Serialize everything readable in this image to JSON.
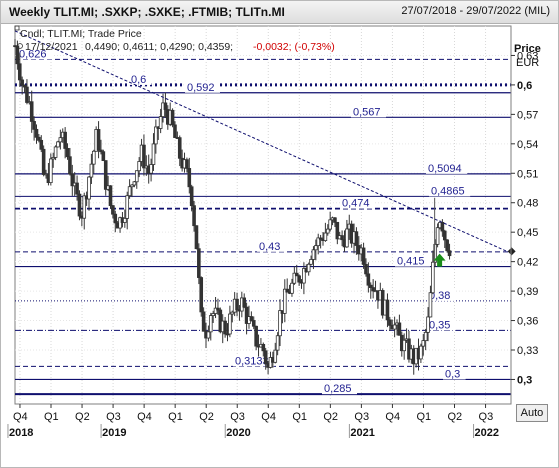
{
  "window": {
    "title": "Weekly TLIT.MI; .SXKP; .SXKE; .FTMIB; TLITn.MI",
    "date_range": "27/07/2018 - 29/07/2022 (MIL)"
  },
  "legend": {
    "line1": "Cndl; TLIT.MI; Trade Price",
    "date": "17/12/2021",
    "ohlc": "0,4490; 0,4611; 0,4290; 0,4359;",
    "change": "-0,0032; (-0,73%)"
  },
  "axis": {
    "price_label": "Price",
    "currency_label": "EUR",
    "auto_label": "Auto"
  },
  "colors": {
    "level_lines": "#0f0f6e",
    "candles": "#333333",
    "arrow": "#1a8c1a",
    "negative_change": "#d00000"
  },
  "chart_data": {
    "type": "candlestick",
    "title": "",
    "xlabel": "",
    "ylabel": "Price",
    "unit": "EUR",
    "ylim": [
      0.275,
      0.66
    ],
    "x_range": [
      "2018-07-27",
      "2022-07-29"
    ],
    "y_ticks": [
      "0,3",
      "0,33",
      "0,36",
      "0,39",
      "0,42",
      "0,45",
      "0,48",
      "0,51",
      "0,54",
      "0,57",
      "0,6",
      "0,63"
    ],
    "bold_y_ticks": [
      "0,3",
      "0,6"
    ],
    "x_quarter_ticks": [
      {
        "t": 2018.62,
        "label": "Q4"
      },
      {
        "t": 2018.87,
        "label": "Q1"
      },
      {
        "t": 2019.12,
        "label": "Q2"
      },
      {
        "t": 2019.37,
        "label": "Q3"
      },
      {
        "t": 2019.62,
        "label": "Q4"
      },
      {
        "t": 2019.87,
        "label": "Q1"
      },
      {
        "t": 2020.12,
        "label": "Q2"
      },
      {
        "t": 2020.37,
        "label": "Q3"
      },
      {
        "t": 2020.62,
        "label": "Q4"
      },
      {
        "t": 2020.87,
        "label": "Q1"
      },
      {
        "t": 2021.12,
        "label": "Q2"
      },
      {
        "t": 2021.37,
        "label": "Q3"
      },
      {
        "t": 2021.62,
        "label": "Q4"
      },
      {
        "t": 2021.87,
        "label": "Q1"
      },
      {
        "t": 2022.12,
        "label": "Q2"
      },
      {
        "t": 2022.37,
        "label": "Q3"
      }
    ],
    "x_year_labels": [
      {
        "t": 2018.62,
        "label": "2018"
      },
      {
        "t": 2019.37,
        "label": "2019"
      },
      {
        "t": 2020.37,
        "label": "2020"
      },
      {
        "t": 2021.37,
        "label": "2021"
      },
      {
        "t": 2022.37,
        "label": "2022"
      }
    ],
    "horizontal_levels": [
      {
        "label": "0,626",
        "value": 0.626,
        "style": "dashed"
      },
      {
        "label": "0,6",
        "value": 0.6,
        "style": "dotted-heavy"
      },
      {
        "label": "0,592",
        "value": 0.592,
        "style": "solid"
      },
      {
        "label": "0,567",
        "value": 0.567,
        "style": "solid"
      },
      {
        "label": "0,5094",
        "value": 0.5094,
        "style": "solid"
      },
      {
        "label": "0,4865",
        "value": 0.4865,
        "style": "solid-thin"
      },
      {
        "label": "0,474",
        "value": 0.474,
        "style": "dashed-heavy"
      },
      {
        "label": "0,43",
        "value": 0.43,
        "style": "dashed"
      },
      {
        "label": "0,415",
        "value": 0.415,
        "style": "solid"
      },
      {
        "label": "0,38",
        "value": 0.38,
        "style": "dotted"
      },
      {
        "label": "0,35",
        "value": 0.35,
        "style": "dashdot"
      },
      {
        "label": "0,3133",
        "value": 0.3133,
        "style": "dashed"
      },
      {
        "label": "0,3",
        "value": 0.3,
        "style": "solid"
      },
      {
        "label": "0,285",
        "value": 0.285,
        "style": "solid-heavy"
      }
    ],
    "trendline": [
      {
        "t": 2018.58,
        "price": 0.655
      },
      {
        "t": 2022.55,
        "price": 0.43
      }
    ],
    "last_value_marker": {
      "t": 2022.58,
      "price": 0.4305
    },
    "up_arrow": {
      "t": 2022.0,
      "price": 0.418
    },
    "price_path": [
      [
        2018.58,
        0.64
      ],
      [
        2018.64,
        0.6
      ],
      [
        2018.7,
        0.58
      ],
      [
        2018.76,
        0.55
      ],
      [
        2018.82,
        0.5
      ],
      [
        2018.88,
        0.52
      ],
      [
        2018.94,
        0.55
      ],
      [
        2019.0,
        0.53
      ],
      [
        2019.06,
        0.49
      ],
      [
        2019.12,
        0.47
      ],
      [
        2019.18,
        0.51
      ],
      [
        2019.24,
        0.55
      ],
      [
        2019.3,
        0.51
      ],
      [
        2019.36,
        0.47
      ],
      [
        2019.42,
        0.46
      ],
      [
        2019.48,
        0.48
      ],
      [
        2019.54,
        0.51
      ],
      [
        2019.6,
        0.53
      ],
      [
        2019.66,
        0.51
      ],
      [
        2019.72,
        0.55
      ],
      [
        2019.78,
        0.58
      ],
      [
        2019.84,
        0.56
      ],
      [
        2019.9,
        0.53
      ],
      [
        2019.96,
        0.51
      ],
      [
        2020.0,
        0.49
      ],
      [
        2020.04,
        0.44
      ],
      [
        2020.08,
        0.36
      ],
      [
        2020.12,
        0.35
      ],
      [
        2020.16,
        0.37
      ],
      [
        2020.22,
        0.36
      ],
      [
        2020.28,
        0.35
      ],
      [
        2020.34,
        0.37
      ],
      [
        2020.4,
        0.38
      ],
      [
        2020.46,
        0.36
      ],
      [
        2020.52,
        0.34
      ],
      [
        2020.58,
        0.33
      ],
      [
        2020.62,
        0.31
      ],
      [
        2020.66,
        0.33
      ],
      [
        2020.72,
        0.37
      ],
      [
        2020.78,
        0.39
      ],
      [
        2020.84,
        0.4
      ],
      [
        2020.9,
        0.41
      ],
      [
        2020.96,
        0.43
      ],
      [
        2021.02,
        0.44
      ],
      [
        2021.08,
        0.45
      ],
      [
        2021.14,
        0.46
      ],
      [
        2021.2,
        0.44
      ],
      [
        2021.26,
        0.45
      ],
      [
        2021.32,
        0.44
      ],
      [
        2021.38,
        0.43
      ],
      [
        2021.44,
        0.4
      ],
      [
        2021.5,
        0.39
      ],
      [
        2021.56,
        0.37
      ],
      [
        2021.62,
        0.36
      ],
      [
        2021.68,
        0.34
      ],
      [
        2021.74,
        0.33
      ],
      [
        2021.8,
        0.32
      ],
      [
        2021.86,
        0.33
      ],
      [
        2021.91,
        0.36
      ],
      [
        2021.95,
        0.42
      ],
      [
        2021.99,
        0.47
      ],
      [
        2022.02,
        0.46
      ],
      [
        2022.05,
        0.44
      ],
      [
        2022.08,
        0.435
      ]
    ]
  }
}
